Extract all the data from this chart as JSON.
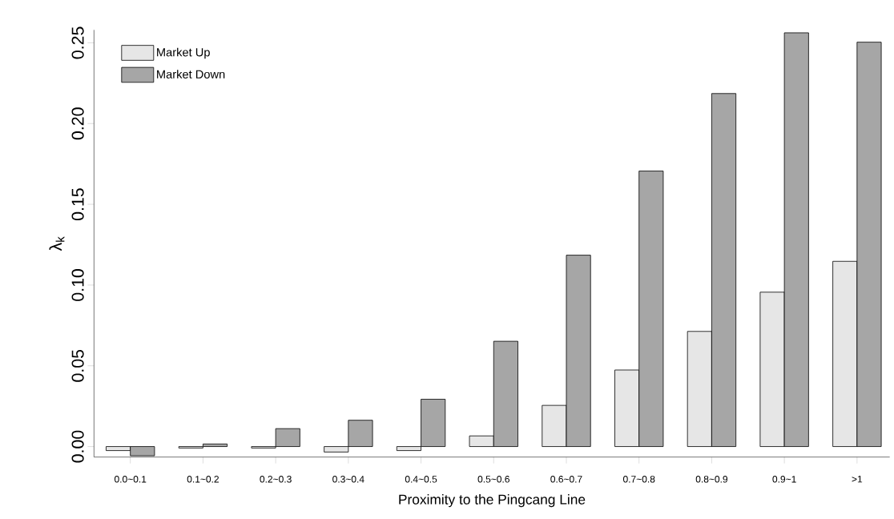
{
  "chart_data": {
    "type": "bar",
    "xlabel": "Proximity to the Pingcang Line",
    "ylabel": "λ$_{k}$",
    "categories": [
      "0.0~0.1",
      "0.1~0.2",
      "0.2~0.3",
      "0.3~0.4",
      "0.4~0.5",
      "0.5~0.6",
      "0.6~0.7",
      "0.7~0.8",
      "0.8~0.9",
      "0.9~1",
      ">1"
    ],
    "series": [
      {
        "name": "Market Up",
        "color": "#e6e6e6",
        "values": [
          -0.0025,
          -0.0009,
          -0.0009,
          -0.0034,
          -0.0025,
          0.0066,
          0.0255,
          0.0474,
          0.0713,
          0.0956,
          0.1147
        ]
      },
      {
        "name": "Market Down",
        "color": "#a6a6a6",
        "values": [
          -0.0057,
          0.0016,
          0.0111,
          0.0163,
          0.0293,
          0.0652,
          0.1185,
          0.1706,
          0.2186,
          0.2562,
          0.2504
        ]
      }
    ],
    "ylim": [
      -0.0065,
      0.258
    ],
    "yticks": [
      {
        "value": 0,
        "label": "0.00"
      },
      {
        "value": 0.05,
        "label": "0.05"
      },
      {
        "value": 0.1,
        "label": "0.10"
      },
      {
        "value": 0.15,
        "label": "0.15"
      },
      {
        "value": 0.2,
        "label": "0.20"
      },
      {
        "value": 0.25,
        "label": "0.25"
      }
    ],
    "legend": "top left",
    "grid": false
  }
}
